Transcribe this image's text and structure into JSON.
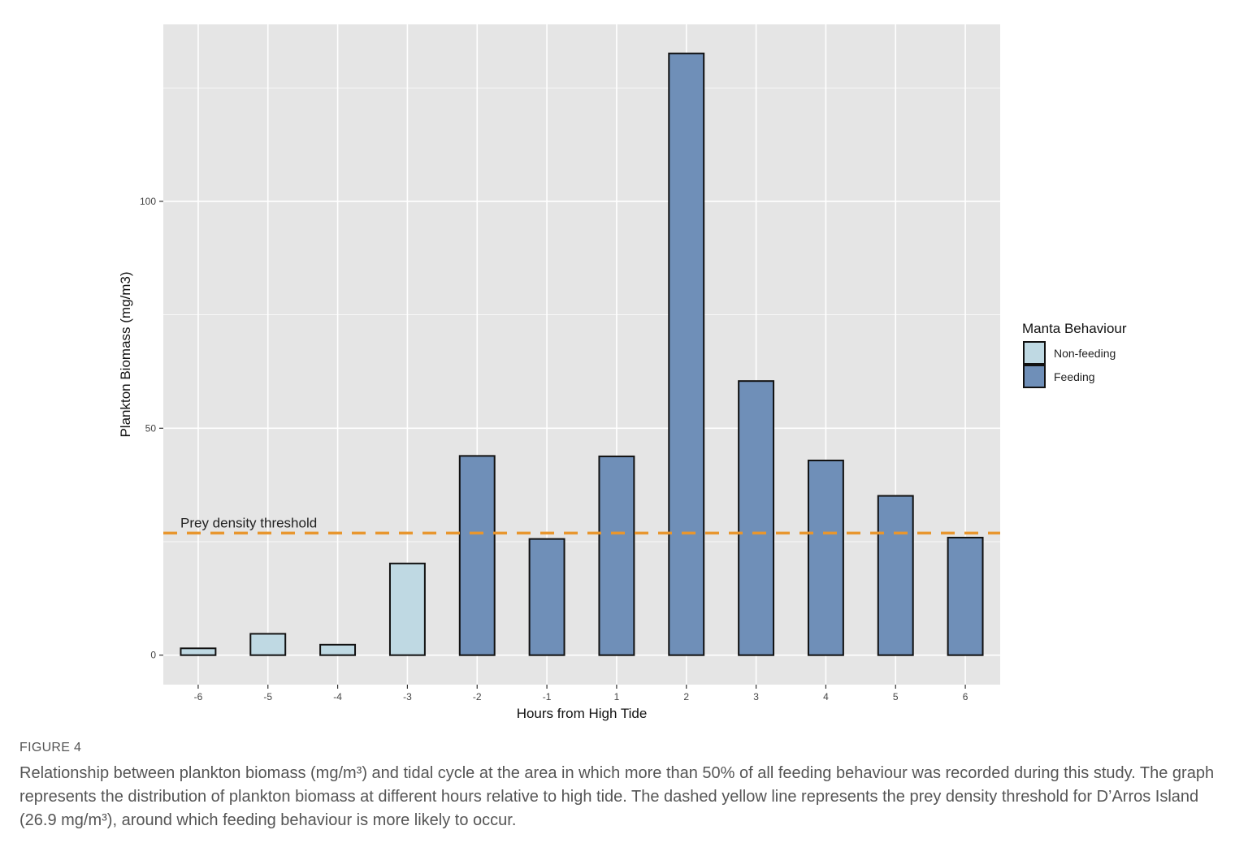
{
  "chart_data": {
    "type": "bar",
    "xlabel": "Hours from High Tide",
    "ylabel": "Plankton Biomass (mg/m3)",
    "categories": [
      "-6",
      "-5",
      "-4",
      "-3",
      "-2",
      "-1",
      "1",
      "2",
      "3",
      "4",
      "5",
      "6"
    ],
    "values": [
      1.5,
      4.7,
      2.3,
      20.2,
      43.9,
      25.6,
      43.8,
      132.6,
      60.4,
      42.9,
      35.1,
      25.9
    ],
    "behaviour": [
      "Non-feeding",
      "Non-feeding",
      "Non-feeding",
      "Non-feeding",
      "Feeding",
      "Feeding",
      "Feeding",
      "Feeding",
      "Feeding",
      "Feeding",
      "Feeding",
      "Feeding"
    ],
    "ylim": [
      -6.5,
      139
    ],
    "yticks": [
      0,
      50,
      100
    ],
    "threshold": {
      "value": 26.9,
      "label": "Prey density threshold"
    },
    "legend": {
      "title": "Manta Behaviour",
      "placement": "right",
      "items": [
        {
          "label": "Non-feeding",
          "color": "#bfd9e3"
        },
        {
          "label": "Feeding",
          "color": "#6f8fb8"
        }
      ]
    }
  },
  "colors": {
    "panel": "#e5e5e5",
    "grid": "#ffffff",
    "threshold": "#e8962e",
    "non_feeding": "#bfd9e3",
    "feeding": "#6f8fb8"
  },
  "caption": {
    "label": "FIGURE 4",
    "text": "Relationship between plankton biomass (mg/m³) and tidal cycle at the area in which more than 50% of all feeding behaviour was recorded during this study. The graph represents the distribution of plankton biomass at different hours relative to high tide. The dashed yellow line represents the prey density threshold for D’Arros Island (26.9 mg/m³), around which feeding behaviour is more likely to occur."
  }
}
